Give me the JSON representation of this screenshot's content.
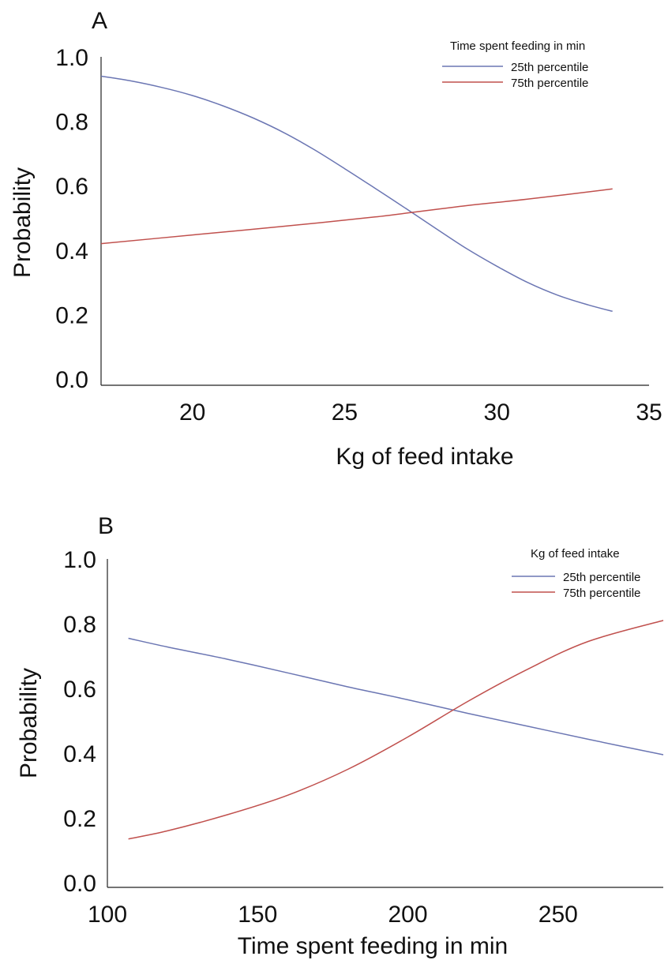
{
  "chart_data": [
    {
      "panel": "A",
      "type": "line",
      "xlabel": "Kg of feed intake",
      "ylabel": "Probability",
      "xlim": [
        17,
        35
      ],
      "ylim": [
        0,
        1.0
      ],
      "xticks": [
        "20",
        "25",
        "30",
        "35"
      ],
      "yticks": [
        "0.0",
        "0.2",
        "0.4",
        "0.6",
        "0.8",
        "1.0"
      ],
      "legend_title": "Time spent feeding in min",
      "legend_position": "top-right",
      "series": [
        {
          "name": "25th percentile",
          "color": "#6b76b3",
          "x": [
            17.0,
            18.0,
            19.0,
            20.0,
            21.0,
            22.0,
            23.0,
            24.0,
            25.0,
            26.0,
            27.0,
            28.0,
            29.0,
            30.0,
            31.0,
            32.0,
            33.0,
            33.8
          ],
          "y": [
            0.94,
            0.925,
            0.905,
            0.88,
            0.848,
            0.81,
            0.765,
            0.712,
            0.653,
            0.592,
            0.53,
            0.467,
            0.405,
            0.35,
            0.3,
            0.26,
            0.23,
            0.21
          ]
        },
        {
          "name": "75th percentile",
          "color": "#c0504d",
          "x": [
            17.0,
            20.0,
            23.0,
            26.0,
            29.0,
            31.0,
            33.8
          ],
          "y": [
            0.42,
            0.447,
            0.474,
            0.503,
            0.538,
            0.558,
            0.59
          ]
        }
      ]
    },
    {
      "panel": "B",
      "type": "line",
      "xlabel": "Time spent feeding in min",
      "ylabel": "Probability",
      "xlim": [
        100,
        285
      ],
      "ylim": [
        0,
        1.0
      ],
      "xticks": [
        "100",
        "150",
        "200",
        "250"
      ],
      "yticks": [
        "0.0",
        "0.2",
        "0.4",
        "0.6",
        "0.8",
        "1.0"
      ],
      "legend_title": "Kg of feed intake",
      "legend_position": "top-right",
      "series": [
        {
          "name": "25th percentile",
          "color": "#6b76b3",
          "x": [
            107,
            120,
            140,
            160,
            180,
            200,
            220,
            240,
            260,
            285
          ],
          "y": [
            0.755,
            0.728,
            0.69,
            0.648,
            0.605,
            0.565,
            0.523,
            0.483,
            0.443,
            0.395
          ]
        },
        {
          "name": "75th percentile",
          "color": "#c0504d",
          "x": [
            107,
            120,
            140,
            160,
            180,
            200,
            220,
            240,
            260,
            285
          ],
          "y": [
            0.135,
            0.16,
            0.21,
            0.27,
            0.35,
            0.45,
            0.56,
            0.66,
            0.745,
            0.81
          ]
        }
      ]
    }
  ]
}
